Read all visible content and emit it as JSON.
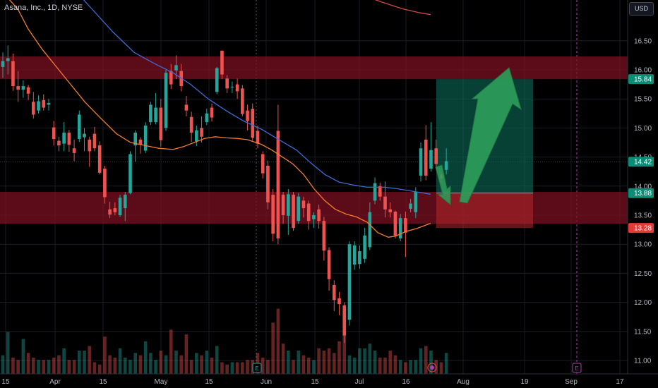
{
  "title": "Asana, Inc., 1D, NYSE",
  "currency_button": "USD",
  "colors": {
    "background": "#000000",
    "up": "#26a69a",
    "down": "#ef5350",
    "ma_fast": "#f57c2b",
    "ma_mid": "#3d6bd6",
    "ma_slow": "#d9453f",
    "zone": "#7a1020",
    "target": "#0b6b59",
    "arrow": "#2e9e5a"
  },
  "chart_data": {
    "type": "candlestick",
    "ylim": [
      10.87,
      17.3
    ],
    "y_ticks": [
      "16.50",
      "16.00",
      "15.50",
      "15.00",
      "14.50",
      "14.00",
      "13.50",
      "13.00",
      "12.50",
      "12.00",
      "11.50",
      "11.00"
    ],
    "x_ticks": [
      "15",
      "Apr",
      "15",
      "May",
      "15",
      "Jun",
      "15",
      "Jul",
      "16",
      "Aug",
      "19",
      "Sep",
      "17"
    ],
    "price_tags": [
      {
        "label": "15.84",
        "value": 15.84,
        "color": "#0b8c74"
      },
      {
        "label": "14.42",
        "value": 14.42,
        "color": "#0b8c74"
      },
      {
        "label": "13.88",
        "value": 13.88,
        "color": "#0b8c74"
      },
      {
        "label": "13.28",
        "value": 13.28,
        "color": "#e53935"
      }
    ],
    "zones": [
      {
        "from": 15.84,
        "to": 16.23
      },
      {
        "from": 13.35,
        "to": 13.9
      }
    ],
    "position": {
      "entry": 13.88,
      "target": 15.84,
      "stop": 13.28
    },
    "earnings_markers": [
      "E",
      "E"
    ],
    "candles": [
      [
        16.05,
        16.3,
        15.86,
        16.15
      ],
      [
        16.15,
        16.42,
        15.92,
        16.2
      ],
      [
        16.15,
        16.28,
        15.64,
        15.72
      ],
      [
        15.72,
        15.98,
        15.45,
        15.66
      ],
      [
        15.66,
        15.82,
        15.52,
        15.72
      ],
      [
        15.7,
        15.74,
        15.48,
        15.59
      ],
      [
        15.45,
        15.62,
        15.16,
        15.23
      ],
      [
        15.3,
        15.56,
        15.25,
        15.46
      ],
      [
        15.48,
        15.58,
        15.3,
        15.35
      ],
      [
        15.4,
        15.5,
        15.3,
        15.43
      ],
      [
        15.01,
        15.12,
        14.7,
        14.81
      ],
      [
        14.78,
        14.85,
        14.6,
        14.7
      ],
      [
        14.73,
        15.1,
        14.6,
        14.92
      ],
      [
        14.92,
        14.97,
        14.59,
        14.71
      ],
      [
        14.65,
        14.8,
        14.43,
        14.57
      ],
      [
        14.81,
        15.3,
        14.76,
        15.23
      ],
      [
        14.84,
        15.0,
        14.6,
        14.9
      ],
      [
        14.8,
        14.85,
        14.33,
        14.6
      ],
      [
        14.9,
        15.02,
        14.6,
        14.65
      ],
      [
        14.7,
        14.77,
        14.2,
        14.23
      ],
      [
        14.3,
        14.35,
        13.7,
        13.81
      ],
      [
        13.6,
        13.73,
        13.45,
        13.51
      ],
      [
        13.62,
        13.72,
        13.5,
        13.55
      ],
      [
        13.5,
        13.85,
        13.47,
        13.8
      ],
      [
        13.62,
        13.9,
        13.4,
        13.85
      ],
      [
        13.88,
        14.6,
        13.86,
        14.55
      ],
      [
        14.7,
        14.96,
        14.42,
        14.92
      ],
      [
        14.8,
        14.84,
        14.56,
        14.72
      ],
      [
        14.61,
        15.1,
        14.57,
        15.04
      ],
      [
        15.1,
        15.45,
        15.05,
        15.4
      ],
      [
        15.1,
        15.6,
        15.06,
        15.35
      ],
      [
        15.35,
        15.5,
        14.68,
        14.79
      ],
      [
        15.0,
        16.0,
        14.95,
        15.95
      ],
      [
        15.98,
        16.1,
        15.67,
        15.75
      ],
      [
        15.99,
        16.25,
        15.84,
        16.08
      ],
      [
        15.98,
        16.1,
        15.63,
        15.72
      ],
      [
        15.4,
        15.55,
        15.2,
        15.3
      ],
      [
        15.19,
        15.28,
        14.76,
        14.92
      ],
      [
        14.77,
        15.04,
        14.69,
        14.96
      ],
      [
        15.0,
        15.2,
        14.75,
        14.85
      ],
      [
        15.1,
        15.33,
        15.05,
        15.25
      ],
      [
        15.35,
        15.42,
        15.11,
        15.18
      ],
      [
        15.62,
        16.05,
        15.58,
        16.03
      ],
      [
        16.33,
        16.33,
        15.84,
        15.92
      ],
      [
        15.85,
        15.91,
        15.6,
        15.68
      ],
      [
        15.7,
        15.8,
        15.6,
        15.71
      ],
      [
        15.75,
        15.85,
        15.5,
        15.63
      ],
      [
        15.68,
        15.74,
        15.2,
        15.24
      ],
      [
        15.3,
        15.4,
        14.96,
        15.12
      ],
      [
        15.33,
        15.42,
        14.78,
        14.83
      ],
      [
        14.95,
        15.04,
        14.65,
        14.73
      ],
      [
        14.55,
        14.6,
        14.13,
        14.22
      ],
      [
        14.35,
        14.44,
        13.6,
        13.72
      ],
      [
        13.85,
        13.95,
        13.05,
        13.18
      ],
      [
        14.95,
        15.4,
        13.0,
        13.1
      ],
      [
        13.85,
        13.9,
        13.35,
        13.5
      ],
      [
        13.49,
        13.95,
        13.16,
        13.86
      ],
      [
        13.85,
        13.9,
        13.23,
        13.28
      ],
      [
        13.4,
        13.88,
        13.35,
        13.82
      ],
      [
        13.75,
        13.82,
        13.46,
        13.62
      ],
      [
        13.7,
        13.75,
        13.25,
        13.4
      ],
      [
        13.43,
        13.55,
        13.28,
        13.5
      ],
      [
        13.6,
        13.68,
        13.27,
        13.4
      ],
      [
        13.4,
        13.47,
        12.72,
        12.89
      ],
      [
        12.9,
        12.95,
        12.2,
        12.4
      ],
      [
        12.3,
        12.38,
        11.85,
        12.04
      ],
      [
        12.07,
        12.18,
        11.78,
        11.97
      ],
      [
        11.95,
        12.0,
        11.3,
        11.43
      ],
      [
        11.7,
        13.05,
        11.6,
        13.0
      ],
      [
        12.65,
        13.05,
        12.56,
        12.98
      ],
      [
        12.66,
        12.98,
        12.58,
        12.88
      ],
      [
        12.75,
        13.28,
        12.68,
        13.15
      ],
      [
        12.95,
        13.72,
        12.9,
        13.55
      ],
      [
        13.75,
        14.15,
        13.69,
        14.05
      ],
      [
        14.0,
        14.06,
        13.75,
        13.82
      ],
      [
        13.82,
        14.08,
        13.46,
        13.6
      ],
      [
        13.6,
        13.72,
        13.46,
        13.55
      ],
      [
        13.56,
        13.58,
        13.1,
        13.15
      ],
      [
        13.1,
        13.52,
        13.05,
        13.45
      ],
      [
        13.45,
        13.56,
        12.78,
        13.2
      ],
      [
        13.61,
        13.78,
        13.55,
        13.7
      ],
      [
        13.55,
        13.98,
        13.45,
        13.9
      ],
      [
        14.18,
        14.75,
        14.08,
        14.65
      ],
      [
        14.8,
        15.05,
        14.1,
        14.18
      ],
      [
        14.3,
        15.1,
        14.25,
        14.62
      ],
      [
        14.65,
        14.8,
        14.3,
        14.38
      ],
      [
        14.2,
        14.25,
        14.05,
        14.13
      ],
      [
        14.28,
        14.65,
        14.2,
        14.43
      ]
    ],
    "volumes": [
      0.8,
      1.8,
      0.7,
      0.6,
      1.5,
      0.9,
      0.7,
      0.6,
      0.6,
      0.6,
      0.7,
      0.8,
      1.1,
      0.6,
      0.6,
      1.0,
      1.0,
      1.2,
      0.5,
      0.4,
      1.6,
      0.8,
      0.7,
      1.1,
      0.7,
      0.6,
      0.9,
      0.8,
      1.4,
      0.9,
      0.6,
      1.0,
      0.8,
      1.9,
      1.0,
      0.8,
      1.7,
      0.6,
      0.9,
      0.8,
      1.0,
      0.7,
      1.2,
      0.5,
      0.4,
      0.5,
      0.5,
      0.5,
      0.6,
      0.6,
      0.9,
      0.7,
      0.6,
      2.2,
      2.8,
      1.3,
      1.0,
      0.6,
      1.0,
      0.8,
      0.7,
      0.6,
      1.1,
      1.0,
      1.1,
      0.9,
      1.4,
      1.7,
      0.8,
      0.7,
      1.1,
      1.1,
      1.3,
      1.0,
      0.7,
      0.7,
      1.0,
      0.8,
      0.6,
      0.5,
      0.6,
      0.6,
      1.1,
      1.2,
      1.0,
      0.6,
      0.5,
      0.9
    ],
    "ma_fast": [
      [
        0,
        17.5
      ],
      [
        10,
        17.25
      ],
      [
        25,
        17.05
      ],
      [
        40,
        16.7
      ],
      [
        60,
        16.35
      ],
      [
        80,
        16.05
      ],
      [
        100,
        15.75
      ],
      [
        120,
        15.45
      ],
      [
        140,
        15.2
      ],
      [
        165,
        14.9
      ],
      [
        185,
        14.75
      ],
      [
        205,
        14.7
      ],
      [
        225,
        14.65
      ],
      [
        245,
        14.63
      ],
      [
        260,
        14.68
      ],
      [
        275,
        14.75
      ],
      [
        290,
        14.82
      ],
      [
        305,
        14.85
      ],
      [
        320,
        14.83
      ],
      [
        335,
        14.82
      ],
      [
        350,
        14.8
      ],
      [
        370,
        14.72
      ],
      [
        385,
        14.62
      ],
      [
        400,
        14.5
      ],
      [
        415,
        14.38
      ],
      [
        430,
        14.2
      ],
      [
        445,
        13.95
      ],
      [
        460,
        13.75
      ],
      [
        475,
        13.6
      ],
      [
        490,
        13.52
      ],
      [
        505,
        13.47
      ],
      [
        520,
        13.38
      ],
      [
        535,
        13.2
      ],
      [
        550,
        13.12
      ],
      [
        560,
        13.14
      ],
      [
        575,
        13.22
      ],
      [
        590,
        13.27
      ],
      [
        610,
        13.36
      ]
    ],
    "ma_mid": [
      [
        100,
        17.45
      ],
      [
        130,
        17.05
      ],
      [
        160,
        16.65
      ],
      [
        190,
        16.3
      ],
      [
        220,
        16.1
      ],
      [
        245,
        15.95
      ],
      [
        270,
        15.75
      ],
      [
        295,
        15.5
      ],
      [
        320,
        15.3
      ],
      [
        345,
        15.12
      ],
      [
        370,
        14.98
      ],
      [
        395,
        14.8
      ],
      [
        420,
        14.62
      ],
      [
        440,
        14.4
      ],
      [
        460,
        14.2
      ],
      [
        480,
        14.07
      ],
      [
        500,
        14.02
      ],
      [
        520,
        13.98
      ],
      [
        545,
        13.98
      ],
      [
        565,
        13.95
      ],
      [
        590,
        13.9
      ],
      [
        610,
        13.86
      ]
    ],
    "ma_slow": [
      [
        510,
        17.3
      ],
      [
        540,
        17.17
      ],
      [
        570,
        17.05
      ],
      [
        595,
        16.98
      ],
      [
        610,
        16.95
      ]
    ]
  }
}
